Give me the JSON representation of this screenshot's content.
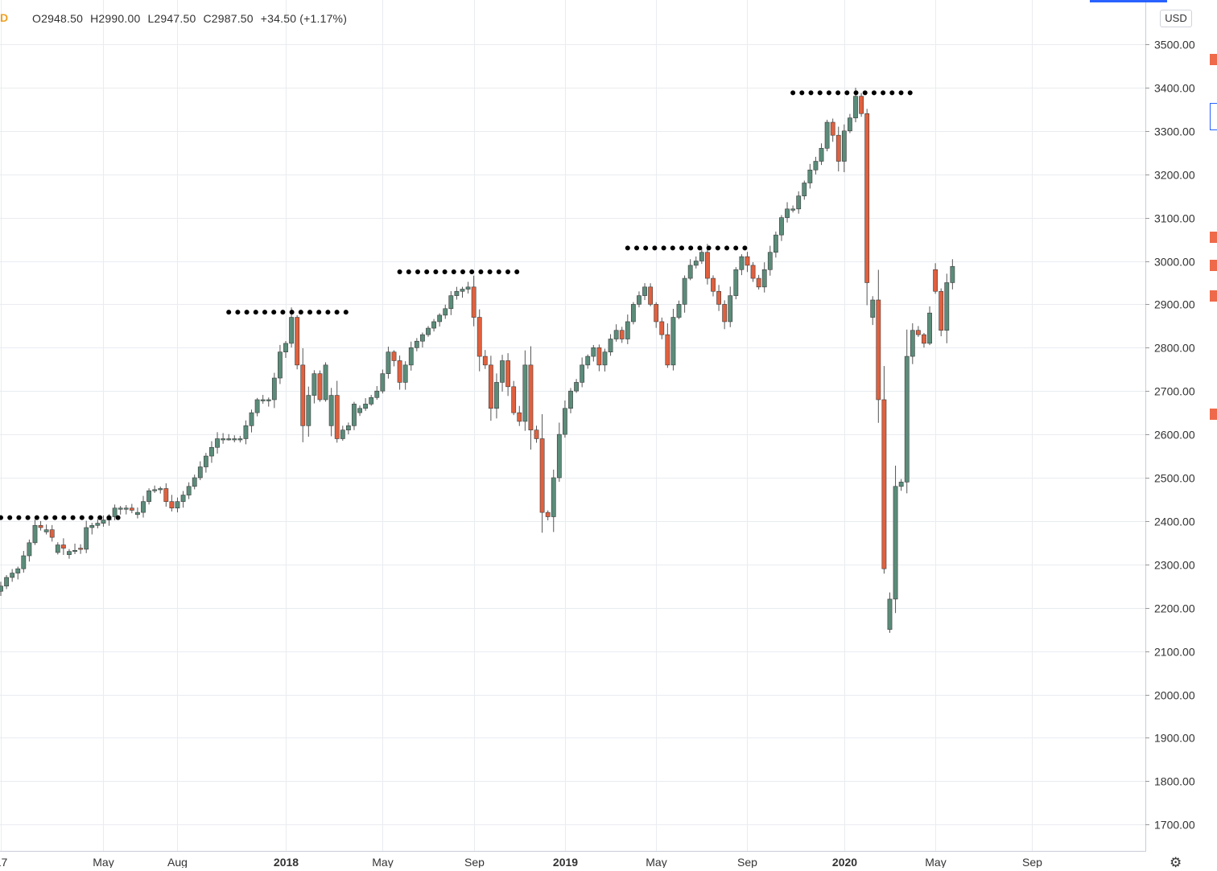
{
  "symbol_badge": "D",
  "ohlc": {
    "open": "O2948.50",
    "high": "H2990.00",
    "low": "L2947.50",
    "close": "C2987.50",
    "change": "+34.50 (+1.17%)"
  },
  "currency": "USD",
  "settings_icon": "gear-icon",
  "colors": {
    "up": "#5b8c7a",
    "down": "#e0603e",
    "grid": "#e9ecf0",
    "dots": "#000000",
    "marker": "#ee6a4a",
    "accent": "#2962ff"
  },
  "chart_data": {
    "type": "candlestick",
    "timeframe": "weekly",
    "ylim": [
      1650,
      3580
    ],
    "y_ticks": [
      "3500.00",
      "3400.00",
      "3300.00",
      "3200.00",
      "3100.00",
      "3000.00",
      "2900.00",
      "2800.00",
      "2700.00",
      "2600.00",
      "2500.00",
      "2400.00",
      "2300.00",
      "2200.00",
      "2100.00",
      "2000.00",
      "1900.00",
      "1800.00",
      "1700.00"
    ],
    "x_ticks": [
      {
        "label": "17",
        "bold": false,
        "week": 0
      },
      {
        "label": "May",
        "bold": false,
        "week": 18
      },
      {
        "label": "Aug",
        "bold": false,
        "week": 31
      },
      {
        "label": "2018",
        "bold": true,
        "week": 50
      },
      {
        "label": "May",
        "bold": false,
        "week": 67
      },
      {
        "label": "Sep",
        "bold": false,
        "week": 83
      },
      {
        "label": "2019",
        "bold": true,
        "week": 99
      },
      {
        "label": "May",
        "bold": false,
        "week": 115
      },
      {
        "label": "Sep",
        "bold": false,
        "week": 131
      },
      {
        "label": "2020",
        "bold": true,
        "week": 148
      },
      {
        "label": "May",
        "bold": false,
        "week": 164
      },
      {
        "label": "Sep",
        "bold": false,
        "week": 181
      }
    ],
    "week_axis": {
      "first_week": 0,
      "last_week": 188
    },
    "resistance_levels": [
      {
        "price": 2408,
        "from_week": 0,
        "to_week": 22
      },
      {
        "price": 2882,
        "from_week": 40,
        "to_week": 62
      },
      {
        "price": 2975,
        "from_week": 70,
        "to_week": 92
      },
      {
        "price": 3030,
        "from_week": 110,
        "to_week": 132
      },
      {
        "price": 3388,
        "from_week": 139,
        "to_week": 161
      }
    ],
    "anchors": [
      [
        0,
        2250,
        0
      ],
      [
        1,
        2270,
        0
      ],
      [
        3,
        2290,
        0
      ],
      [
        5,
        2350,
        0
      ],
      [
        6,
        2390,
        0
      ],
      [
        8,
        2380,
        0
      ],
      [
        10,
        2345,
        0
      ],
      [
        12,
        2330,
        0
      ],
      [
        14,
        2335,
        1
      ],
      [
        15,
        2385,
        0
      ],
      [
        17,
        2395,
        0
      ],
      [
        19,
        2410,
        0
      ],
      [
        20,
        2430,
        0
      ],
      [
        22,
        2430,
        0
      ],
      [
        24,
        2420,
        0
      ],
      [
        26,
        2470,
        0
      ],
      [
        28,
        2475,
        0
      ],
      [
        29,
        2445,
        1
      ],
      [
        30,
        2430,
        1
      ],
      [
        32,
        2460,
        0
      ],
      [
        34,
        2500,
        0
      ],
      [
        36,
        2550,
        0
      ],
      [
        38,
        2590,
        0
      ],
      [
        40,
        2590,
        0
      ],
      [
        42,
        2590,
        0
      ],
      [
        44,
        2650,
        0
      ],
      [
        45,
        2680,
        0
      ],
      [
        47,
        2680,
        0
      ],
      [
        48,
        2730,
        0
      ],
      [
        49,
        2790,
        0
      ],
      [
        50,
        2810,
        0
      ],
      [
        51,
        2870,
        0
      ],
      [
        52,
        2760,
        1
      ],
      [
        53,
        2620,
        1
      ],
      [
        54,
        2690,
        0
      ],
      [
        55,
        2740,
        0
      ],
      [
        56,
        2680,
        1
      ],
      [
        57,
        2760,
        0
      ],
      [
        58,
        2690,
        0
      ],
      [
        59,
        2590,
        1
      ],
      [
        60,
        2610,
        0
      ],
      [
        61,
        2620,
        0
      ],
      [
        62,
        2670,
        0
      ],
      [
        63,
        2660,
        0
      ],
      [
        64,
        2670,
        0
      ],
      [
        66,
        2700,
        0
      ],
      [
        67,
        2740,
        0
      ],
      [
        68,
        2790,
        0
      ],
      [
        69,
        2770,
        1
      ],
      [
        70,
        2720,
        1
      ],
      [
        72,
        2800,
        0
      ],
      [
        74,
        2830,
        0
      ],
      [
        76,
        2860,
        0
      ],
      [
        78,
        2890,
        0
      ],
      [
        79,
        2920,
        0
      ],
      [
        80,
        2930,
        0
      ],
      [
        82,
        2940,
        0
      ],
      [
        83,
        2870,
        1
      ],
      [
        84,
        2780,
        1
      ],
      [
        85,
        2760,
        1
      ],
      [
        86,
        2660,
        1
      ],
      [
        87,
        2720,
        0
      ],
      [
        88,
        2770,
        0
      ],
      [
        89,
        2710,
        1
      ],
      [
        90,
        2650,
        1
      ],
      [
        91,
        2630,
        1
      ],
      [
        92,
        2760,
        0
      ],
      [
        93,
        2610,
        1
      ],
      [
        94,
        2590,
        1
      ],
      [
        95,
        2420,
        1
      ],
      [
        96,
        2410,
        1
      ],
      [
        97,
        2500,
        0
      ],
      [
        98,
        2600,
        0
      ],
      [
        99,
        2660,
        0
      ],
      [
        100,
        2700,
        0
      ],
      [
        101,
        2720,
        0
      ],
      [
        102,
        2760,
        0
      ],
      [
        103,
        2780,
        0
      ],
      [
        104,
        2800,
        0
      ],
      [
        105,
        2760,
        1
      ],
      [
        106,
        2790,
        0
      ],
      [
        107,
        2820,
        0
      ],
      [
        108,
        2840,
        0
      ],
      [
        109,
        2820,
        1
      ],
      [
        110,
        2860,
        0
      ],
      [
        111,
        2900,
        0
      ],
      [
        112,
        2920,
        0
      ],
      [
        113,
        2940,
        0
      ],
      [
        114,
        2900,
        1
      ],
      [
        115,
        2860,
        1
      ],
      [
        116,
        2830,
        1
      ],
      [
        117,
        2760,
        1
      ],
      [
        118,
        2870,
        0
      ],
      [
        119,
        2900,
        0
      ],
      [
        120,
        2960,
        0
      ],
      [
        121,
        2990,
        0
      ],
      [
        122,
        3000,
        0
      ],
      [
        123,
        3020,
        0
      ],
      [
        124,
        2960,
        1
      ],
      [
        125,
        2930,
        1
      ],
      [
        126,
        2900,
        1
      ],
      [
        127,
        2860,
        1
      ],
      [
        128,
        2920,
        0
      ],
      [
        129,
        2980,
        0
      ],
      [
        130,
        3010,
        0
      ],
      [
        131,
        2990,
        1
      ],
      [
        132,
        2960,
        1
      ],
      [
        133,
        2940,
        1
      ],
      [
        134,
        2980,
        0
      ],
      [
        135,
        3020,
        0
      ],
      [
        136,
        3060,
        0
      ],
      [
        137,
        3100,
        0
      ],
      [
        138,
        3120,
        0
      ],
      [
        139,
        3120,
        0
      ],
      [
        140,
        3150,
        0
      ],
      [
        141,
        3180,
        0
      ],
      [
        142,
        3210,
        0
      ],
      [
        143,
        3230,
        0
      ],
      [
        144,
        3260,
        0
      ],
      [
        145,
        3320,
        0
      ],
      [
        146,
        3290,
        1
      ],
      [
        147,
        3230,
        1
      ],
      [
        148,
        3300,
        0
      ],
      [
        149,
        3330,
        0
      ],
      [
        150,
        3380,
        0
      ],
      [
        151,
        3340,
        1
      ],
      [
        152,
        2950,
        1
      ],
      [
        153,
        2910,
        0
      ],
      [
        154,
        2680,
        1
      ],
      [
        155,
        2290,
        1
      ],
      [
        156,
        2220,
        0
      ],
      [
        157,
        2480,
        0
      ],
      [
        158,
        2490,
        0
      ],
      [
        159,
        2780,
        0
      ],
      [
        160,
        2840,
        0
      ],
      [
        161,
        2830,
        1
      ],
      [
        162,
        2810,
        1
      ],
      [
        163,
        2880,
        0
      ],
      [
        164,
        2930,
        1
      ],
      [
        165,
        2840,
        1
      ],
      [
        166,
        2950,
        0
      ],
      [
        167,
        2987.5,
        0
      ]
    ]
  }
}
